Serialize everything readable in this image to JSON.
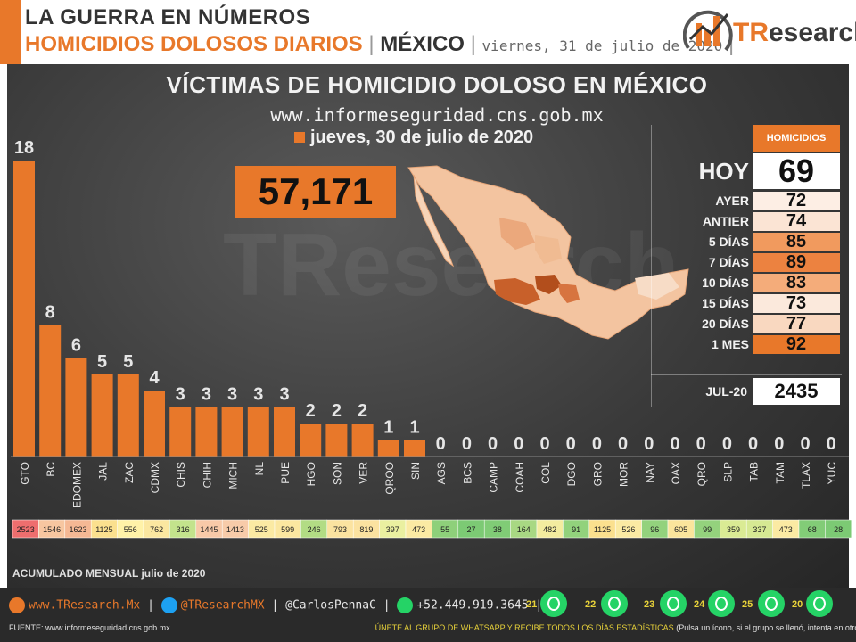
{
  "header": {
    "title_line1": "LA GUERRA EN NÚMEROS",
    "title_line2": "HOMICIDIOS DOLOSOS DIARIOS",
    "sep": "|",
    "country": "MÉXICO",
    "date": "viernes, 31 de julio de 2020",
    "logo_text_tr": "TR",
    "logo_text_rest": "esearch"
  },
  "main": {
    "title": "VÍCTIMAS DE HOMICIDIO DOLOSO EN MÉXICO",
    "url": "www.informeseguridad.cns.gob.mx",
    "legend_date": "jueves, 30 de julio de 2020",
    "big_total": "57,171",
    "watermark": "TResearch"
  },
  "summary": {
    "header": "HOMICIDIOS",
    "hoy_label": "HOY",
    "hoy_value": "69",
    "rows": [
      {
        "label": "AYER",
        "value": "72",
        "color": "#fdeee4"
      },
      {
        "label": "ANTIER",
        "value": "74",
        "color": "#fbe4d4"
      },
      {
        "label": "5 DÍAS",
        "value": "85",
        "color": "#f19a5e"
      },
      {
        "label": "7 DÍAS",
        "value": "89",
        "color": "#ec8240"
      },
      {
        "label": "10 DÍAS",
        "value": "83",
        "color": "#f4ac7a"
      },
      {
        "label": "15 DÍAS",
        "value": "73",
        "color": "#fbe9dc"
      },
      {
        "label": "20 DÍAS",
        "value": "77",
        "color": "#f9d8c0"
      },
      {
        "label": "1 MES",
        "value": "92",
        "color": "#e8782a"
      }
    ],
    "jul_label": "JUL-20",
    "jul_value": "2435"
  },
  "chart_data": {
    "type": "bar",
    "title": "VÍCTIMAS DE HOMICIDIO DOLOSO EN MÉXICO",
    "categories": [
      "GTO",
      "BC",
      "EDOMEX",
      "JAL",
      "ZAC",
      "CDMX",
      "CHIS",
      "CHIH",
      "MICH",
      "NL",
      "PUE",
      "HGO",
      "SON",
      "VER",
      "QROO",
      "SIN",
      "AGS",
      "BCS",
      "CAMP",
      "COAH",
      "COL",
      "DGO",
      "GRO",
      "MOR",
      "NAY",
      "OAX",
      "QRO",
      "SLP",
      "TAB",
      "TAM",
      "TLAX",
      "YUC"
    ],
    "values": [
      18,
      8,
      6,
      5,
      5,
      4,
      3,
      3,
      3,
      3,
      3,
      2,
      2,
      2,
      1,
      1,
      0,
      0,
      0,
      0,
      0,
      0,
      0,
      0,
      0,
      0,
      0,
      0,
      0,
      0,
      0,
      0
    ],
    "series_name": "jueves, 30 de julio de 2020",
    "bar_color": "#e8782a",
    "monthly_label": "ACUMULADO MENSUAL julio de 2020",
    "monthly": [
      "2523",
      "1546",
      "1623",
      "1125",
      "556",
      "762",
      "316",
      "1445",
      "1413",
      "525",
      "599",
      "246",
      "793",
      "819",
      "397",
      "473",
      "55",
      "27",
      "38",
      "164",
      "482",
      "91",
      "1125",
      "526",
      "96",
      "605",
      "99",
      "359",
      "337",
      "473",
      "68",
      "28"
    ],
    "monthly_colors": [
      "#ee6e6e",
      "#f7c6a0",
      "#f5b894",
      "#fbe08e",
      "#fff2a8",
      "#fbe7a0",
      "#c3e38c",
      "#f8c9a8",
      "#f8cba9",
      "#fbeaa3",
      "#fbe7a0",
      "#b2dc84",
      "#fbe3a0",
      "#fbe2a0",
      "#eaf0a0",
      "#fbeaa3",
      "#8ed07a",
      "#7cca74",
      "#80cc76",
      "#a8d883",
      "#f3ec9f",
      "#92d27c",
      "#fbe08e",
      "#fbeaa3",
      "#93d27d",
      "#fbe59c",
      "#94d27d",
      "#daeb94",
      "#d6e993",
      "#fbeaa3",
      "#82cc77",
      "#7cca74"
    ]
  },
  "footer": {
    "web": "www.TResearch.Mx",
    "twitter": "@TResearchMX",
    "twitter2": "@CarlosPennaC",
    "phone": "+52.449.919.3645",
    "sep": "|",
    "source_label": "FUENTE:",
    "source_url": "www.informeseguridad.cns.gob.mx",
    "join_text": "ÚNETE  AL GRUPO DE  WHATSAPP Y RECIBE  TODOS LOS  DÍAS ESTADÍSTICAS",
    "join_note": "(Pulsa un ícono, si el grupo se llenó, intenta en otro)",
    "whatsapp_groups": [
      "21",
      "22",
      "23",
      "24",
      "25",
      "20"
    ]
  }
}
